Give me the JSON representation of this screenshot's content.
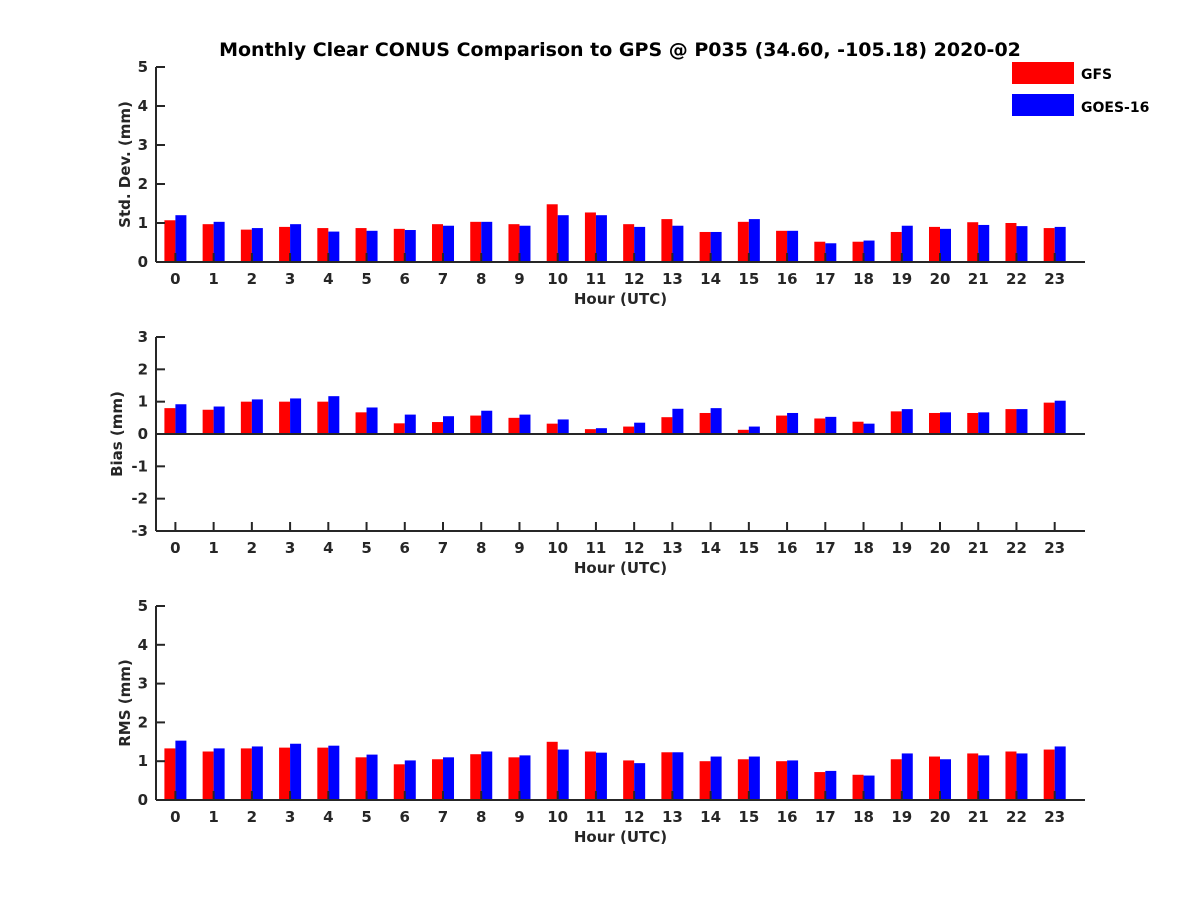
{
  "title": "Monthly Clear CONUS Comparison to GPS @ P035 (34.60, -105.18) 2020-02",
  "colors": {
    "gfs": "#ff0000",
    "goes": "#0000ff"
  },
  "legend": [
    {
      "name": "GFS",
      "color": "#ff0000"
    },
    {
      "name": "GOES-16",
      "color": "#0000ff"
    }
  ],
  "chart_data": [
    {
      "type": "bar",
      "title": "Monthly Clear CONUS Comparison to GPS @ P035 (34.60, -105.18) 2020-02",
      "xlabel": "Hour (UTC)",
      "ylabel": "Std. Dev. (mm)",
      "ylim": [
        0,
        5
      ],
      "yticks": [
        "0",
        "1",
        "2",
        "3",
        "4",
        "5"
      ],
      "categories": [
        "0",
        "1",
        "2",
        "3",
        "4",
        "5",
        "6",
        "7",
        "8",
        "9",
        "10",
        "11",
        "12",
        "13",
        "14",
        "15",
        "16",
        "17",
        "18",
        "19",
        "20",
        "21",
        "22",
        "23"
      ],
      "series": [
        {
          "name": "GFS",
          "values": [
            1.07,
            0.97,
            0.83,
            0.9,
            0.87,
            0.87,
            0.85,
            0.97,
            1.03,
            0.97,
            1.48,
            1.27,
            0.97,
            1.1,
            0.77,
            1.03,
            0.8,
            0.52,
            0.52,
            0.77,
            0.9,
            1.02,
            1.0,
            0.87
          ]
        },
        {
          "name": "GOES-16",
          "values": [
            1.2,
            1.03,
            0.87,
            0.97,
            0.78,
            0.8,
            0.82,
            0.93,
            1.03,
            0.93,
            1.2,
            1.2,
            0.9,
            0.93,
            0.77,
            1.1,
            0.8,
            0.48,
            0.55,
            0.93,
            0.85,
            0.95,
            0.92,
            0.9
          ]
        }
      ]
    },
    {
      "type": "bar",
      "xlabel": "Hour (UTC)",
      "ylabel": "Bias (mm)",
      "ylim": [
        -3,
        3
      ],
      "yticks": [
        "-3",
        "-2",
        "-1",
        "0",
        "1",
        "2",
        "3"
      ],
      "categories": [
        "0",
        "1",
        "2",
        "3",
        "4",
        "5",
        "6",
        "7",
        "8",
        "9",
        "10",
        "11",
        "12",
        "13",
        "14",
        "15",
        "16",
        "17",
        "18",
        "19",
        "20",
        "21",
        "22",
        "23"
      ],
      "series": [
        {
          "name": "GFS",
          "values": [
            0.8,
            0.75,
            1.0,
            1.0,
            1.0,
            0.67,
            0.33,
            0.37,
            0.57,
            0.5,
            0.32,
            0.15,
            0.23,
            0.52,
            0.65,
            0.13,
            0.57,
            0.48,
            0.38,
            0.7,
            0.65,
            0.65,
            0.77,
            0.97
          ]
        },
        {
          "name": "GOES-16",
          "values": [
            0.92,
            0.85,
            1.07,
            1.1,
            1.17,
            0.82,
            0.6,
            0.55,
            0.72,
            0.6,
            0.45,
            0.18,
            0.35,
            0.78,
            0.8,
            0.23,
            0.65,
            0.53,
            0.32,
            0.77,
            0.67,
            0.67,
            0.77,
            1.03
          ]
        }
      ]
    },
    {
      "type": "bar",
      "xlabel": "Hour (UTC)",
      "ylabel": "RMS (mm)",
      "ylim": [
        0,
        5
      ],
      "yticks": [
        "0",
        "1",
        "2",
        "3",
        "4",
        "5"
      ],
      "categories": [
        "0",
        "1",
        "2",
        "3",
        "4",
        "5",
        "6",
        "7",
        "8",
        "9",
        "10",
        "11",
        "12",
        "13",
        "14",
        "15",
        "16",
        "17",
        "18",
        "19",
        "20",
        "21",
        "22",
        "23"
      ],
      "series": [
        {
          "name": "GFS",
          "values": [
            1.33,
            1.25,
            1.33,
            1.35,
            1.35,
            1.1,
            0.92,
            1.05,
            1.18,
            1.1,
            1.5,
            1.25,
            1.02,
            1.23,
            1.0,
            1.05,
            1.0,
            0.72,
            0.65,
            1.05,
            1.12,
            1.2,
            1.25,
            1.3
          ]
        },
        {
          "name": "GOES-16",
          "values": [
            1.53,
            1.33,
            1.38,
            1.45,
            1.4,
            1.17,
            1.02,
            1.1,
            1.25,
            1.15,
            1.3,
            1.22,
            0.95,
            1.23,
            1.12,
            1.12,
            1.02,
            0.75,
            0.63,
            1.2,
            1.05,
            1.15,
            1.2,
            1.38
          ]
        }
      ]
    }
  ]
}
